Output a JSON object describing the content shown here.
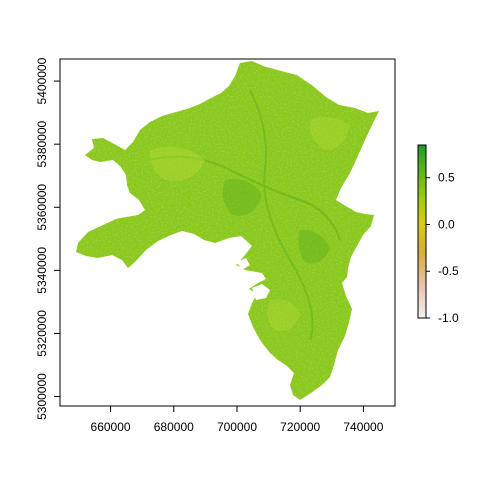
{
  "map": {
    "x_ticks": [
      "660000",
      "680000",
      "700000",
      "720000",
      "740000"
    ],
    "y_ticks": [
      "5300000",
      "5320000",
      "5340000",
      "5360000",
      "5380000",
      "5400000"
    ],
    "x_tick_values": [
      660000,
      680000,
      700000,
      720000,
      740000
    ],
    "y_tick_values": [
      5300000,
      5320000,
      5340000,
      5360000,
      5380000,
      5400000
    ],
    "x_range": [
      644000,
      750000
    ],
    "y_range": [
      5297000,
      5407000
    ],
    "colors": {
      "fill_main": "#8cc81e",
      "fill_light": "#a8d62a",
      "fill_dark": "#5eb21c",
      "frame": "#000000"
    }
  },
  "legend": {
    "ticks": [
      "0.5",
      "0.0",
      "-0.5",
      "-1.0"
    ],
    "tick_values": [
      0.5,
      0.0,
      -0.5,
      -1.0
    ],
    "range": [
      -1.0,
      0.85
    ],
    "gradient_colors": [
      "#f2f2f2",
      "#e8c4b2",
      "#d9ad3c",
      "#d6cc18",
      "#a6cc10",
      "#5cb41c",
      "#1f9a2a"
    ]
  }
}
